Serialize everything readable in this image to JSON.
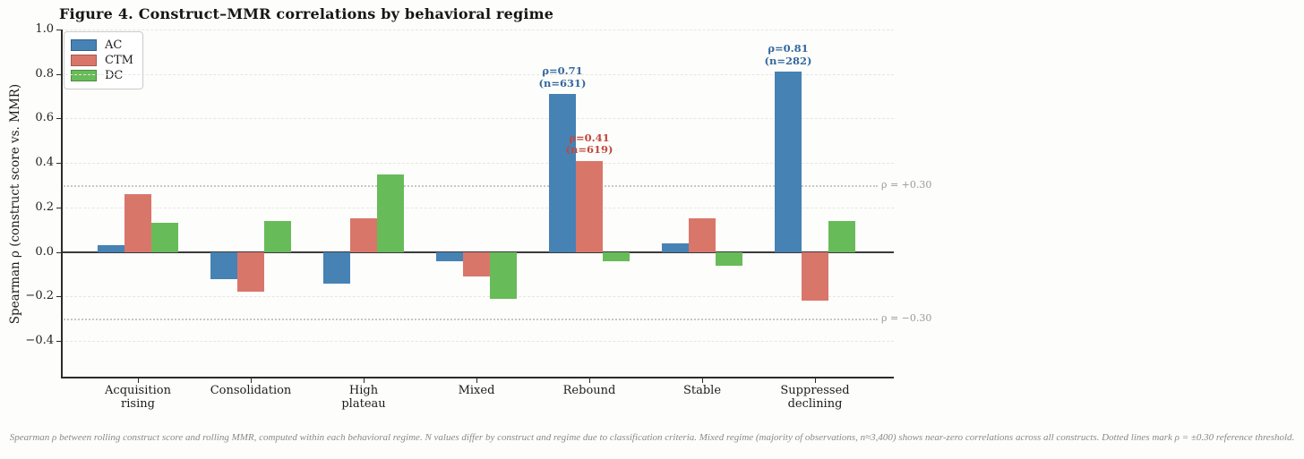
{
  "title": "Figure 4. Construct–MMR correlations by behavioral regime",
  "caption": "Spearman ρ between rolling construct score and rolling MMR, computed within each behavioral regime. N values differ by construct and regime due to classification criteria. Mixed regime (majority of observations, n≈3,400) shows near-zero correlations across all constructs. Dotted lines mark ρ = ±0.30 reference threshold.",
  "chart_data": {
    "type": "bar",
    "title": "Figure 4. Construct–MMR correlations by behavioral regime",
    "xlabel": "",
    "ylabel": "Spearman ρ (construct score vs. MMR)",
    "ylim": [
      -0.56,
      1.0
    ],
    "grid": true,
    "legend_position": "upper left",
    "yticks": [
      1.0,
      0.8,
      0.6,
      0.4,
      0.2,
      0.0,
      -0.2,
      -0.4
    ],
    "ytick_labels": [
      "1.0",
      "0.8",
      "0.6",
      "0.4",
      "0.2",
      "0.0",
      "−0.2",
      "−0.4"
    ],
    "categories": [
      "Acquisition\nrising",
      "Consolidation",
      "High\nplateau",
      "Mixed",
      "Rebound",
      "Stable",
      "Suppressed\ndeclining"
    ],
    "series": [
      {
        "name": "AC",
        "color": "#4682b4",
        "values": [
          0.03,
          -0.12,
          -0.14,
          -0.04,
          0.71,
          0.04,
          0.81
        ]
      },
      {
        "name": "CTM",
        "color": "#d9766a",
        "values": [
          0.26,
          -0.18,
          0.15,
          -0.11,
          0.41,
          0.15,
          -0.22
        ]
      },
      {
        "name": "DC",
        "color": "#68bb59",
        "values": [
          0.13,
          0.14,
          0.35,
          -0.21,
          -0.04,
          -0.06,
          0.14
        ]
      }
    ],
    "annotations": [
      {
        "series": 0,
        "category": 4,
        "lines": [
          "ρ=0.71",
          "(n=631)"
        ],
        "color": "#33689e"
      },
      {
        "series": 1,
        "category": 4,
        "lines": [
          "ρ=0.41",
          "(n=619)"
        ],
        "color": "#c0493d"
      },
      {
        "series": 0,
        "category": 6,
        "lines": [
          "ρ=0.81",
          "(n=282)"
        ],
        "color": "#33689e"
      }
    ],
    "reference_lines": [
      {
        "value": 0.3,
        "label": "ρ = +0.30"
      },
      {
        "value": -0.3,
        "label": "ρ = −0.30"
      }
    ]
  }
}
